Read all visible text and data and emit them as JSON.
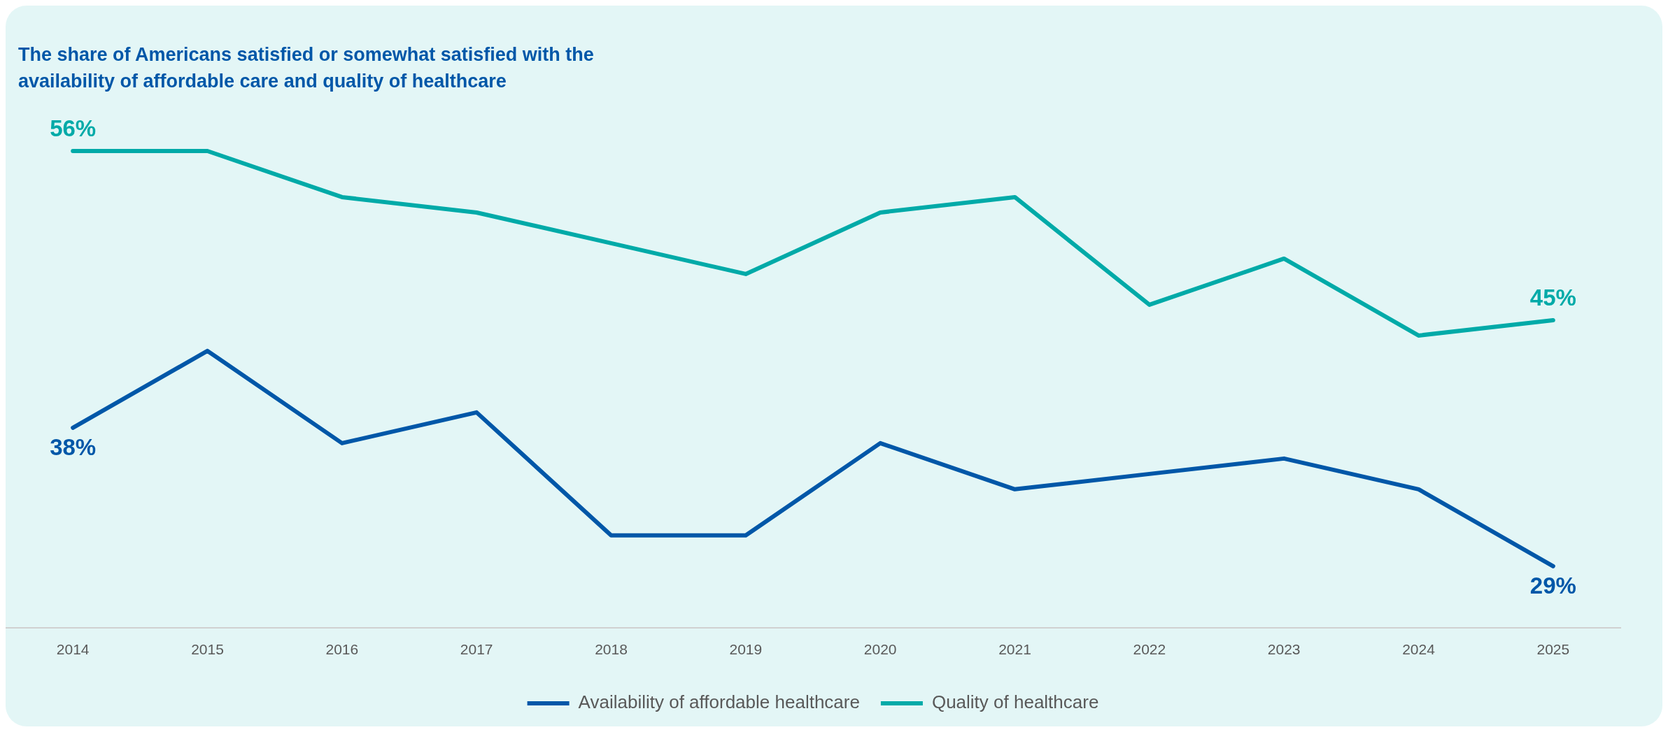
{
  "chart_data": {
    "type": "line",
    "title": "The share of Americans satisfied or somewhat satisfied with the availability of affordable care and quality of healthcare",
    "categories": [
      "2014",
      "2015",
      "2016",
      "2017",
      "2018",
      "2019",
      "2020",
      "2021",
      "2022",
      "2023",
      "2024",
      "2025"
    ],
    "series": [
      {
        "name": "Availability of affordable healthcare",
        "color": "#0057a8",
        "values": [
          38,
          43,
          37,
          39,
          31,
          31,
          37,
          34,
          35,
          36,
          34,
          29
        ],
        "value_labels": [
          "38%",
          null,
          null,
          null,
          null,
          null,
          null,
          null,
          null,
          null,
          null,
          "29%"
        ]
      },
      {
        "name": "Quality of healthcare",
        "color": "#00aaa8",
        "values": [
          56,
          56,
          53,
          52,
          50,
          48,
          52,
          53,
          46,
          49,
          44,
          45
        ],
        "value_labels": [
          "56%",
          null,
          null,
          null,
          null,
          null,
          null,
          null,
          null,
          null,
          null,
          "45%"
        ]
      }
    ],
    "grid": false,
    "legend": "bottom",
    "marker": "none",
    "line_style": "solid"
  }
}
